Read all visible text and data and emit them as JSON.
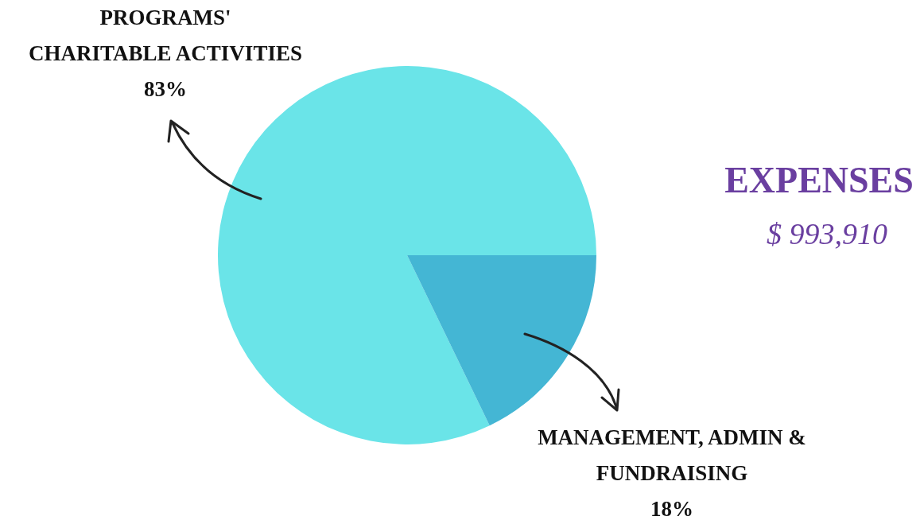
{
  "chart_data": {
    "type": "pie",
    "title": "EXPENSES",
    "subtitle": "$ 993,910",
    "categories": [
      "PROGRAMS' CHARITABLE ACTIVITIES",
      "MANAGEMENT, ADMIN & FUNDRAISING"
    ],
    "values": [
      83,
      18
    ],
    "colors": [
      "#6ae4e8",
      "#44b6d4"
    ],
    "value_labels": [
      "83%",
      "18%"
    ],
    "legend": false
  }
}
